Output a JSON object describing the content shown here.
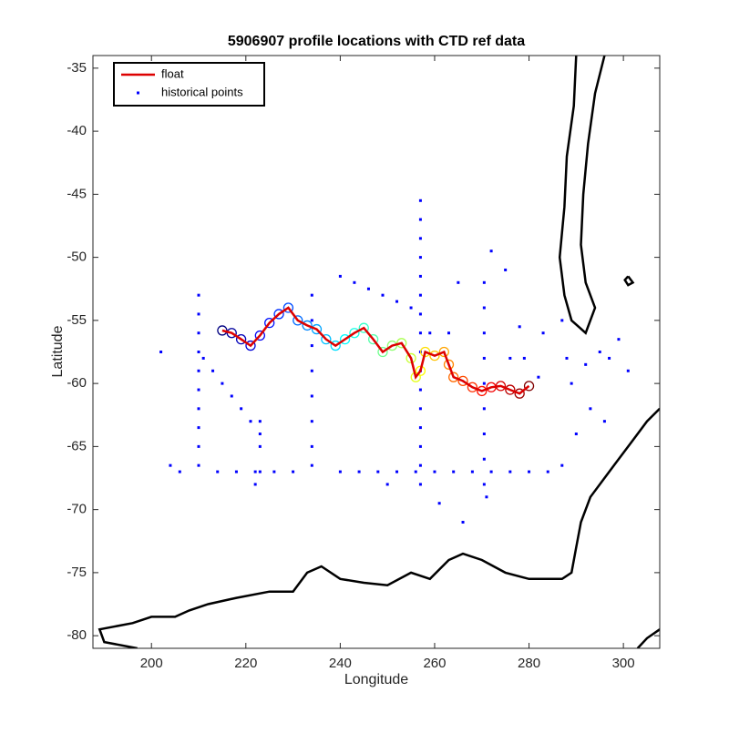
{
  "chart_data": {
    "type": "line",
    "title": "5906907 profile locations with CTD ref data",
    "x_label": "Longitude",
    "y_label": "Latitude",
    "xlim": [
      187.6,
      307.7
    ],
    "ylim": [
      -81,
      -34
    ],
    "xticks": [
      200,
      220,
      240,
      260,
      280,
      300
    ],
    "yticks": [
      -80,
      -75,
      -70,
      -65,
      -60,
      -55,
      -50,
      -45,
      -40,
      -35
    ],
    "grid": false,
    "legend": "upper left",
    "profile_colormap": "jet",
    "series": [
      {
        "name": "float",
        "color": "#dd0000",
        "mode": "line",
        "x": [
          215,
          217,
          219,
          221,
          223,
          225,
          227,
          229,
          231,
          233,
          235,
          237,
          239,
          241,
          243,
          245,
          247,
          249,
          251,
          253,
          255,
          256,
          257,
          258,
          260,
          262,
          263,
          264,
          266,
          268,
          270,
          272,
          274,
          276,
          278,
          280
        ],
        "y": [
          -55.8,
          -56,
          -56.5,
          -57,
          -56.2,
          -55.2,
          -54.5,
          -54,
          -55,
          -55.4,
          -55.7,
          -56.5,
          -57,
          -56.5,
          -56,
          -55.6,
          -56.5,
          -57.5,
          -57,
          -56.8,
          -58,
          -59.5,
          -59,
          -57.5,
          -57.8,
          -57.5,
          -58.5,
          -59.5,
          -59.8,
          -60.3,
          -60.6,
          -60.3,
          -60.2,
          -60.5,
          -60.8,
          -60.2
        ]
      },
      {
        "name": "historical points",
        "color": "#0000ff",
        "mode": "markers",
        "x": [
          210,
          210,
          210,
          210,
          210,
          210,
          210,
          210,
          210,
          210,
          234,
          234,
          234,
          234,
          234,
          234,
          234,
          234,
          257,
          257,
          257,
          257,
          257,
          257,
          257,
          257,
          257,
          257,
          257,
          257,
          257,
          257,
          257,
          257,
          270.5,
          270.5,
          270.5,
          270.5,
          270.5,
          270.5,
          270.5,
          270.5,
          270.5,
          223,
          223,
          223,
          206,
          214,
          218,
          222,
          226,
          230,
          240,
          244,
          248,
          252,
          256,
          260,
          264,
          268,
          272,
          276,
          280,
          211,
          213,
          215,
          217,
          219,
          221,
          223,
          240,
          243,
          246,
          249,
          252,
          255,
          202,
          204,
          265,
          272,
          275,
          278,
          283,
          288,
          292,
          295,
          297,
          299,
          296,
          293,
          290,
          287,
          284,
          279,
          276,
          282,
          259,
          263,
          250,
          261,
          266,
          271,
          222,
          287,
          289,
          301
        ],
        "y": [
          -53,
          -54.5,
          -56,
          -57.5,
          -59,
          -60.5,
          -62,
          -63.5,
          -65,
          -66.5,
          -53,
          -55,
          -57,
          -59,
          -61,
          -63,
          -65,
          -66.5,
          -45.5,
          -47,
          -48.5,
          -50,
          -51.5,
          -53,
          -54.5,
          -56,
          -57.5,
          -59,
          -60.5,
          -62,
          -63.5,
          -65,
          -66.5,
          -68,
          -52,
          -54,
          -56,
          -58,
          -60,
          -62,
          -64,
          -66,
          -68,
          -63,
          -65,
          -67,
          -67,
          -67,
          -67,
          -67,
          -67,
          -67,
          -67,
          -67,
          -67,
          -67,
          -67,
          -67,
          -67,
          -67,
          -67,
          -67,
          -67,
          -58,
          -59,
          -60,
          -61,
          -62,
          -63,
          -64,
          -51.5,
          -52,
          -52.5,
          -53,
          -53.5,
          -54,
          -57.5,
          -66.5,
          -52,
          -49.5,
          -51,
          -55.5,
          -56,
          -58,
          -58.5,
          -57.5,
          -58,
          -56.5,
          -63,
          -62,
          -64,
          -66.5,
          -67,
          -58,
          -58,
          -59.5,
          -56,
          -56,
          -68,
          -69.5,
          -71,
          -69,
          -68,
          -55,
          -60,
          -59
        ]
      }
    ],
    "coastlines": [
      {
        "x": [
          290,
          289.5,
          288,
          287.5,
          286.5,
          287.5,
          289,
          292,
          294,
          292,
          291,
          291.5,
          292.5,
          294,
          296
        ],
        "y": [
          -34,
          -38,
          -42,
          -46,
          -50,
          -53,
          -55,
          -56,
          -54,
          -52,
          -49,
          -45,
          -41,
          -37,
          -34
        ]
      },
      {
        "x": [
          301,
          302,
          301,
          300.3,
          301
        ],
        "y": [
          -51.5,
          -52,
          -52.2,
          -51.8,
          -51.5
        ]
      },
      {
        "x": [
          307.7,
          305,
          302,
          299,
          296,
          293,
          291,
          290,
          289,
          287,
          280,
          275,
          270,
          266,
          263,
          259,
          255,
          250,
          245,
          240,
          236,
          233,
          230,
          225,
          218,
          212,
          208,
          205,
          200,
          196,
          189,
          190,
          197
        ],
        "y": [
          -62,
          -63,
          -64.5,
          -66,
          -67.5,
          -69,
          -71,
          -73,
          -75,
          -75.5,
          -75.5,
          -75,
          -74,
          -73.5,
          -74,
          -75.5,
          -75,
          -76,
          -75.8,
          -75.5,
          -74.5,
          -75,
          -76.5,
          -76.5,
          -77,
          -77.5,
          -78,
          -78.5,
          -78.5,
          -79,
          -79.5,
          -80.5,
          -81
        ]
      },
      {
        "x": [
          307.7,
          305,
          303
        ],
        "y": [
          -79.5,
          -80.2,
          -81
        ]
      }
    ]
  }
}
